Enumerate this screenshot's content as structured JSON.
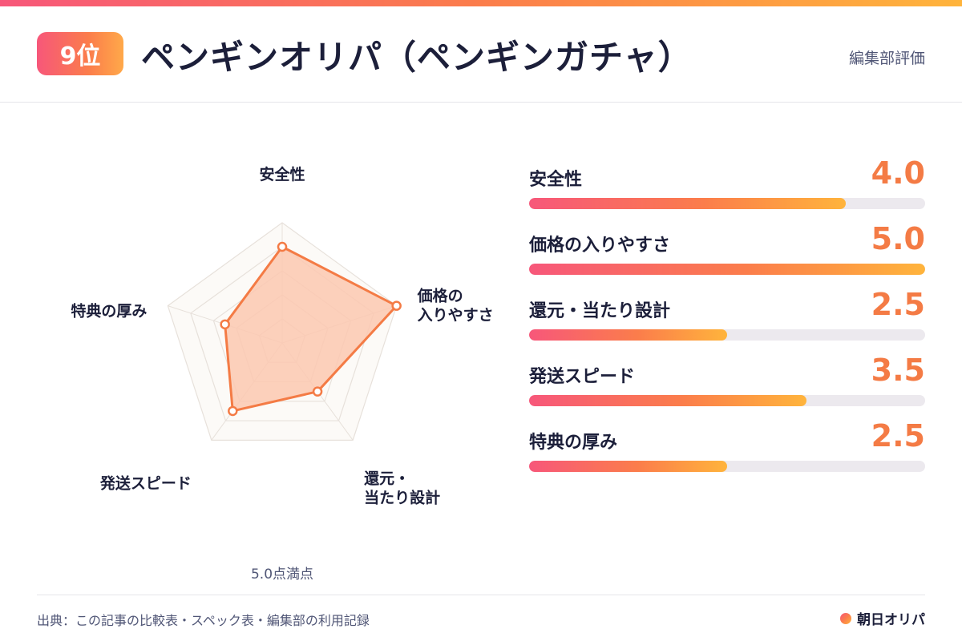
{
  "header": {
    "rank": "9位",
    "title": "ペンギンオリパ（ペンギンガチャ）",
    "note": "編集部評価"
  },
  "chart_data": {
    "type": "radar",
    "max": 5.0,
    "scale_note": "5.0点満点",
    "axes": [
      "安全性",
      "価格の入りやすさ",
      "還元・当たり設計",
      "発送スピード",
      "特典の厚み"
    ],
    "axis_label_lines": [
      [
        "安全性"
      ],
      [
        "価格の",
        "入りやすさ"
      ],
      [
        "還元・",
        "当たり設計"
      ],
      [
        "発送スピード"
      ],
      [
        "特典の厚み"
      ]
    ],
    "values": [
      4.0,
      5.0,
      2.5,
      3.5,
      2.5
    ],
    "grid_levels": 5,
    "colors": {
      "stroke": "#f47b45",
      "fill": "#fbc8b0",
      "grid": "#e7e1db",
      "grid_fill": "#fcfaf7"
    }
  },
  "scores": [
    {
      "label": "安全性",
      "value": "4.0",
      "fraction": 0.8
    },
    {
      "label": "価格の入りやすさ",
      "value": "5.0",
      "fraction": 1.0
    },
    {
      "label": "還元・当たり設計",
      "value": "2.5",
      "fraction": 0.5
    },
    {
      "label": "発送スピード",
      "value": "3.5",
      "fraction": 0.7
    },
    {
      "label": "特典の厚み",
      "value": "2.5",
      "fraction": 0.5
    }
  ],
  "footer": {
    "source": "出典：この記事の比較表・スペック表・編集部の利用記録",
    "brand": "朝日オリパ"
  }
}
